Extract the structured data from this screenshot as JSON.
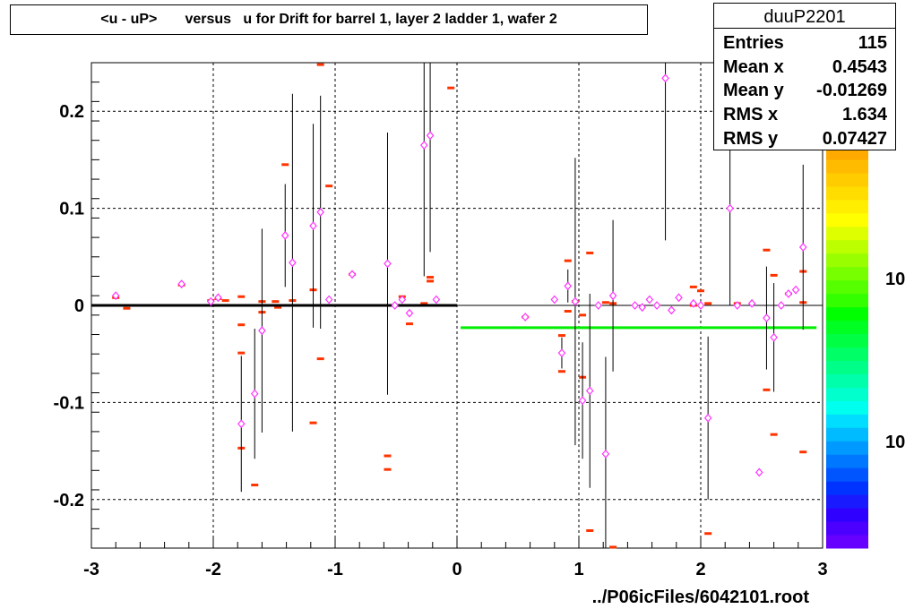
{
  "title": "<u - uP>       versus   u for Drift for barrel 1, layer 2 ladder 1, wafer 2",
  "stats": {
    "name": "duuP2201",
    "rows": [
      {
        "label": "Entries",
        "value": "115"
      },
      {
        "label": "Mean x",
        "value": "0.4543"
      },
      {
        "label": "Mean y",
        "value": "-0.01269"
      },
      {
        "label": "RMS x",
        "value": "1.634"
      },
      {
        "label": "RMS y",
        "value": "0.07427"
      }
    ]
  },
  "footer": "../P06icFiles/6042101.root",
  "colors": {
    "marker": "#ff33ff",
    "cell": "#ff3300",
    "fit_left": "#000000",
    "fit_right": "#00ee00",
    "grid": "#000000"
  },
  "palette": [
    "#6600ff",
    "#4b00ff",
    "#2f00ff",
    "#1a1aff",
    "#0033ff",
    "#0055ff",
    "#0077ff",
    "#0099ff",
    "#00bbff",
    "#00ddff",
    "#00ffee",
    "#00ffcc",
    "#00ffaa",
    "#00ff88",
    "#00ff66",
    "#00ff44",
    "#00ff22",
    "#00ff00",
    "#33ff00",
    "#55ff00",
    "#77ff00",
    "#99ff00",
    "#bbff00",
    "#ddff00",
    "#ffff00",
    "#ffee00",
    "#ffdd00",
    "#ffcc00",
    "#ffbb00",
    "#ffaa00"
  ],
  "palette_labels": [
    "10",
    "10"
  ],
  "chart_data": {
    "type": "scatter",
    "title": "<u - uP>       versus   u for Drift for barrel 1, layer 2 ladder 1, wafer 2",
    "xlabel": "",
    "ylabel": "",
    "xlim": [
      -3,
      3
    ],
    "ylim": [
      -0.25,
      0.25
    ],
    "xticks": [
      -3,
      -2,
      -1,
      0,
      1,
      2,
      3
    ],
    "yticks": [
      -0.2,
      -0.1,
      0,
      0.1,
      0.2
    ],
    "xtick_labels": [
      "-3",
      "-2",
      "-1",
      "0",
      "1",
      "2",
      "3"
    ],
    "ytick_labels": [
      "-0.2",
      "-0.1",
      "0",
      "0.1",
      "0.2"
    ],
    "grid": true,
    "profile_points": [
      {
        "x": -2.8,
        "y": 0.01,
        "err": 0.0
      },
      {
        "x": -2.26,
        "y": 0.022,
        "err": 0.0
      },
      {
        "x": -2.02,
        "y": 0.004,
        "err": 0.0
      },
      {
        "x": -1.96,
        "y": 0.008,
        "err": 0.0
      },
      {
        "x": -1.77,
        "y": -0.122,
        "err": 0.07
      },
      {
        "x": -1.66,
        "y": -0.091,
        "err": 0.067
      },
      {
        "x": -1.6,
        "y": -0.026,
        "err": 0.105
      },
      {
        "x": -1.41,
        "y": 0.072,
        "err": 0.053
      },
      {
        "x": -1.35,
        "y": 0.044,
        "err": 0.174
      },
      {
        "x": -1.18,
        "y": 0.082,
        "err": 0.105
      },
      {
        "x": -1.12,
        "y": 0.096,
        "err": 0.12
      },
      {
        "x": -1.05,
        "y": 0.006,
        "err": 0.0
      },
      {
        "x": -0.86,
        "y": 0.032,
        "err": 0.0
      },
      {
        "x": -0.57,
        "y": 0.043,
        "err": 0.135
      },
      {
        "x": -0.51,
        "y": 0.0,
        "err": 0.0
      },
      {
        "x": -0.45,
        "y": 0.006,
        "err": 0.0
      },
      {
        "x": -0.39,
        "y": -0.008,
        "err": 0.0
      },
      {
        "x": -0.27,
        "y": 0.165,
        "err": 0.135
      },
      {
        "x": -0.22,
        "y": 0.175,
        "err": 0.12
      },
      {
        "x": -0.17,
        "y": 0.006,
        "err": 0.0
      },
      {
        "x": 0.56,
        "y": -0.012,
        "err": 0.0
      },
      {
        "x": 0.8,
        "y": 0.006,
        "err": 0.0
      },
      {
        "x": 0.86,
        "y": -0.049,
        "err": 0.016
      },
      {
        "x": 0.91,
        "y": 0.02,
        "err": 0.017
      },
      {
        "x": 0.97,
        "y": 0.004,
        "err": 0.148
      },
      {
        "x": 1.03,
        "y": -0.098,
        "err": 0.06
      },
      {
        "x": 1.09,
        "y": -0.088,
        "err": 0.1
      },
      {
        "x": 1.16,
        "y": 0.0,
        "err": 0.0
      },
      {
        "x": 1.22,
        "y": -0.153,
        "err": 0.1
      },
      {
        "x": 1.28,
        "y": 0.01,
        "err": 0.078
      },
      {
        "x": 1.46,
        "y": 0.0,
        "err": 0.0
      },
      {
        "x": 1.52,
        "y": -0.002,
        "err": 0.0
      },
      {
        "x": 1.58,
        "y": 0.006,
        "err": 0.0
      },
      {
        "x": 1.64,
        "y": 0.0,
        "err": 0.0
      },
      {
        "x": 1.71,
        "y": 0.234,
        "err": 0.167
      },
      {
        "x": 1.76,
        "y": -0.005,
        "err": 0.0
      },
      {
        "x": 1.82,
        "y": 0.008,
        "err": 0.0
      },
      {
        "x": 1.94,
        "y": 0.002,
        "err": 0.0
      },
      {
        "x": 2.0,
        "y": 0.0,
        "err": 0.0
      },
      {
        "x": 2.06,
        "y": -0.116,
        "err": 0.084
      },
      {
        "x": 2.24,
        "y": 0.1,
        "err": 0.1
      },
      {
        "x": 2.3,
        "y": 0.0,
        "err": 0.0
      },
      {
        "x": 2.42,
        "y": 0.002,
        "err": 0.0
      },
      {
        "x": 2.48,
        "y": -0.172,
        "err": 0.0
      },
      {
        "x": 2.54,
        "y": -0.013,
        "err": 0.053
      },
      {
        "x": 2.6,
        "y": -0.033,
        "err": 0.056
      },
      {
        "x": 2.66,
        "y": 0.0,
        "err": 0.0
      },
      {
        "x": 2.72,
        "y": 0.012,
        "err": 0.0
      },
      {
        "x": 2.78,
        "y": 0.016,
        "err": 0.0
      },
      {
        "x": 2.84,
        "y": 0.06,
        "err": 0.085
      }
    ],
    "cells": [
      [
        -2.8,
        0.008
      ],
      [
        -2.71,
        -0.003
      ],
      [
        -2.26,
        0.021
      ],
      [
        -2.02,
        0.005
      ],
      [
        -1.96,
        0.007
      ],
      [
        -1.9,
        0.005
      ],
      [
        -1.77,
        0.009
      ],
      [
        -1.77,
        -0.02
      ],
      [
        -1.77,
        -0.049
      ],
      [
        -1.77,
        -0.147
      ],
      [
        -1.66,
        -0.185
      ],
      [
        -1.6,
        0.004
      ],
      [
        -1.6,
        -0.007
      ],
      [
        -1.49,
        0.004
      ],
      [
        -1.47,
        -0.002
      ],
      [
        -1.41,
        0.145
      ],
      [
        -1.35,
        0.005
      ],
      [
        -1.18,
        0.016
      ],
      [
        -1.18,
        -0.121
      ],
      [
        -1.12,
        0.248
      ],
      [
        -1.12,
        -0.055
      ],
      [
        -1.05,
        0.123
      ],
      [
        -0.86,
        0.032
      ],
      [
        -0.57,
        -0.155
      ],
      [
        -0.57,
        -0.169
      ],
      [
        -0.45,
        0.009
      ],
      [
        -0.39,
        -0.019
      ],
      [
        -0.27,
        0.002
      ],
      [
        -0.22,
        0.029
      ],
      [
        -0.22,
        0.025
      ],
      [
        -0.05,
        0.224
      ],
      [
        0.56,
        -0.012
      ],
      [
        0.86,
        -0.031
      ],
      [
        0.86,
        -0.068
      ],
      [
        0.91,
        0.046
      ],
      [
        0.91,
        -0.006
      ],
      [
        0.97,
        0.004
      ],
      [
        1.03,
        -0.01
      ],
      [
        1.03,
        -0.074
      ],
      [
        1.09,
        0.054
      ],
      [
        1.09,
        -0.232
      ],
      [
        1.22,
        0.003
      ],
      [
        1.28,
        -0.249
      ],
      [
        1.28,
        0.002
      ],
      [
        1.94,
        0.019
      ],
      [
        1.94,
        0.0
      ],
      [
        2.0,
        0.015
      ],
      [
        2.06,
        0.002
      ],
      [
        2.06,
        -0.235
      ],
      [
        2.3,
        0.002
      ],
      [
        2.54,
        0.057
      ],
      [
        2.54,
        -0.087
      ],
      [
        2.6,
        0.031
      ],
      [
        2.6,
        -0.133
      ],
      [
        2.72,
        0.012
      ],
      [
        2.84,
        0.035
      ],
      [
        2.84,
        0.003
      ],
      [
        2.84,
        -0.151
      ]
    ],
    "fits": [
      {
        "x1": -3.0,
        "x2": 0.0,
        "y": 0.0
      },
      {
        "x1": 0.03,
        "x2": 2.95,
        "y": -0.023
      }
    ]
  }
}
